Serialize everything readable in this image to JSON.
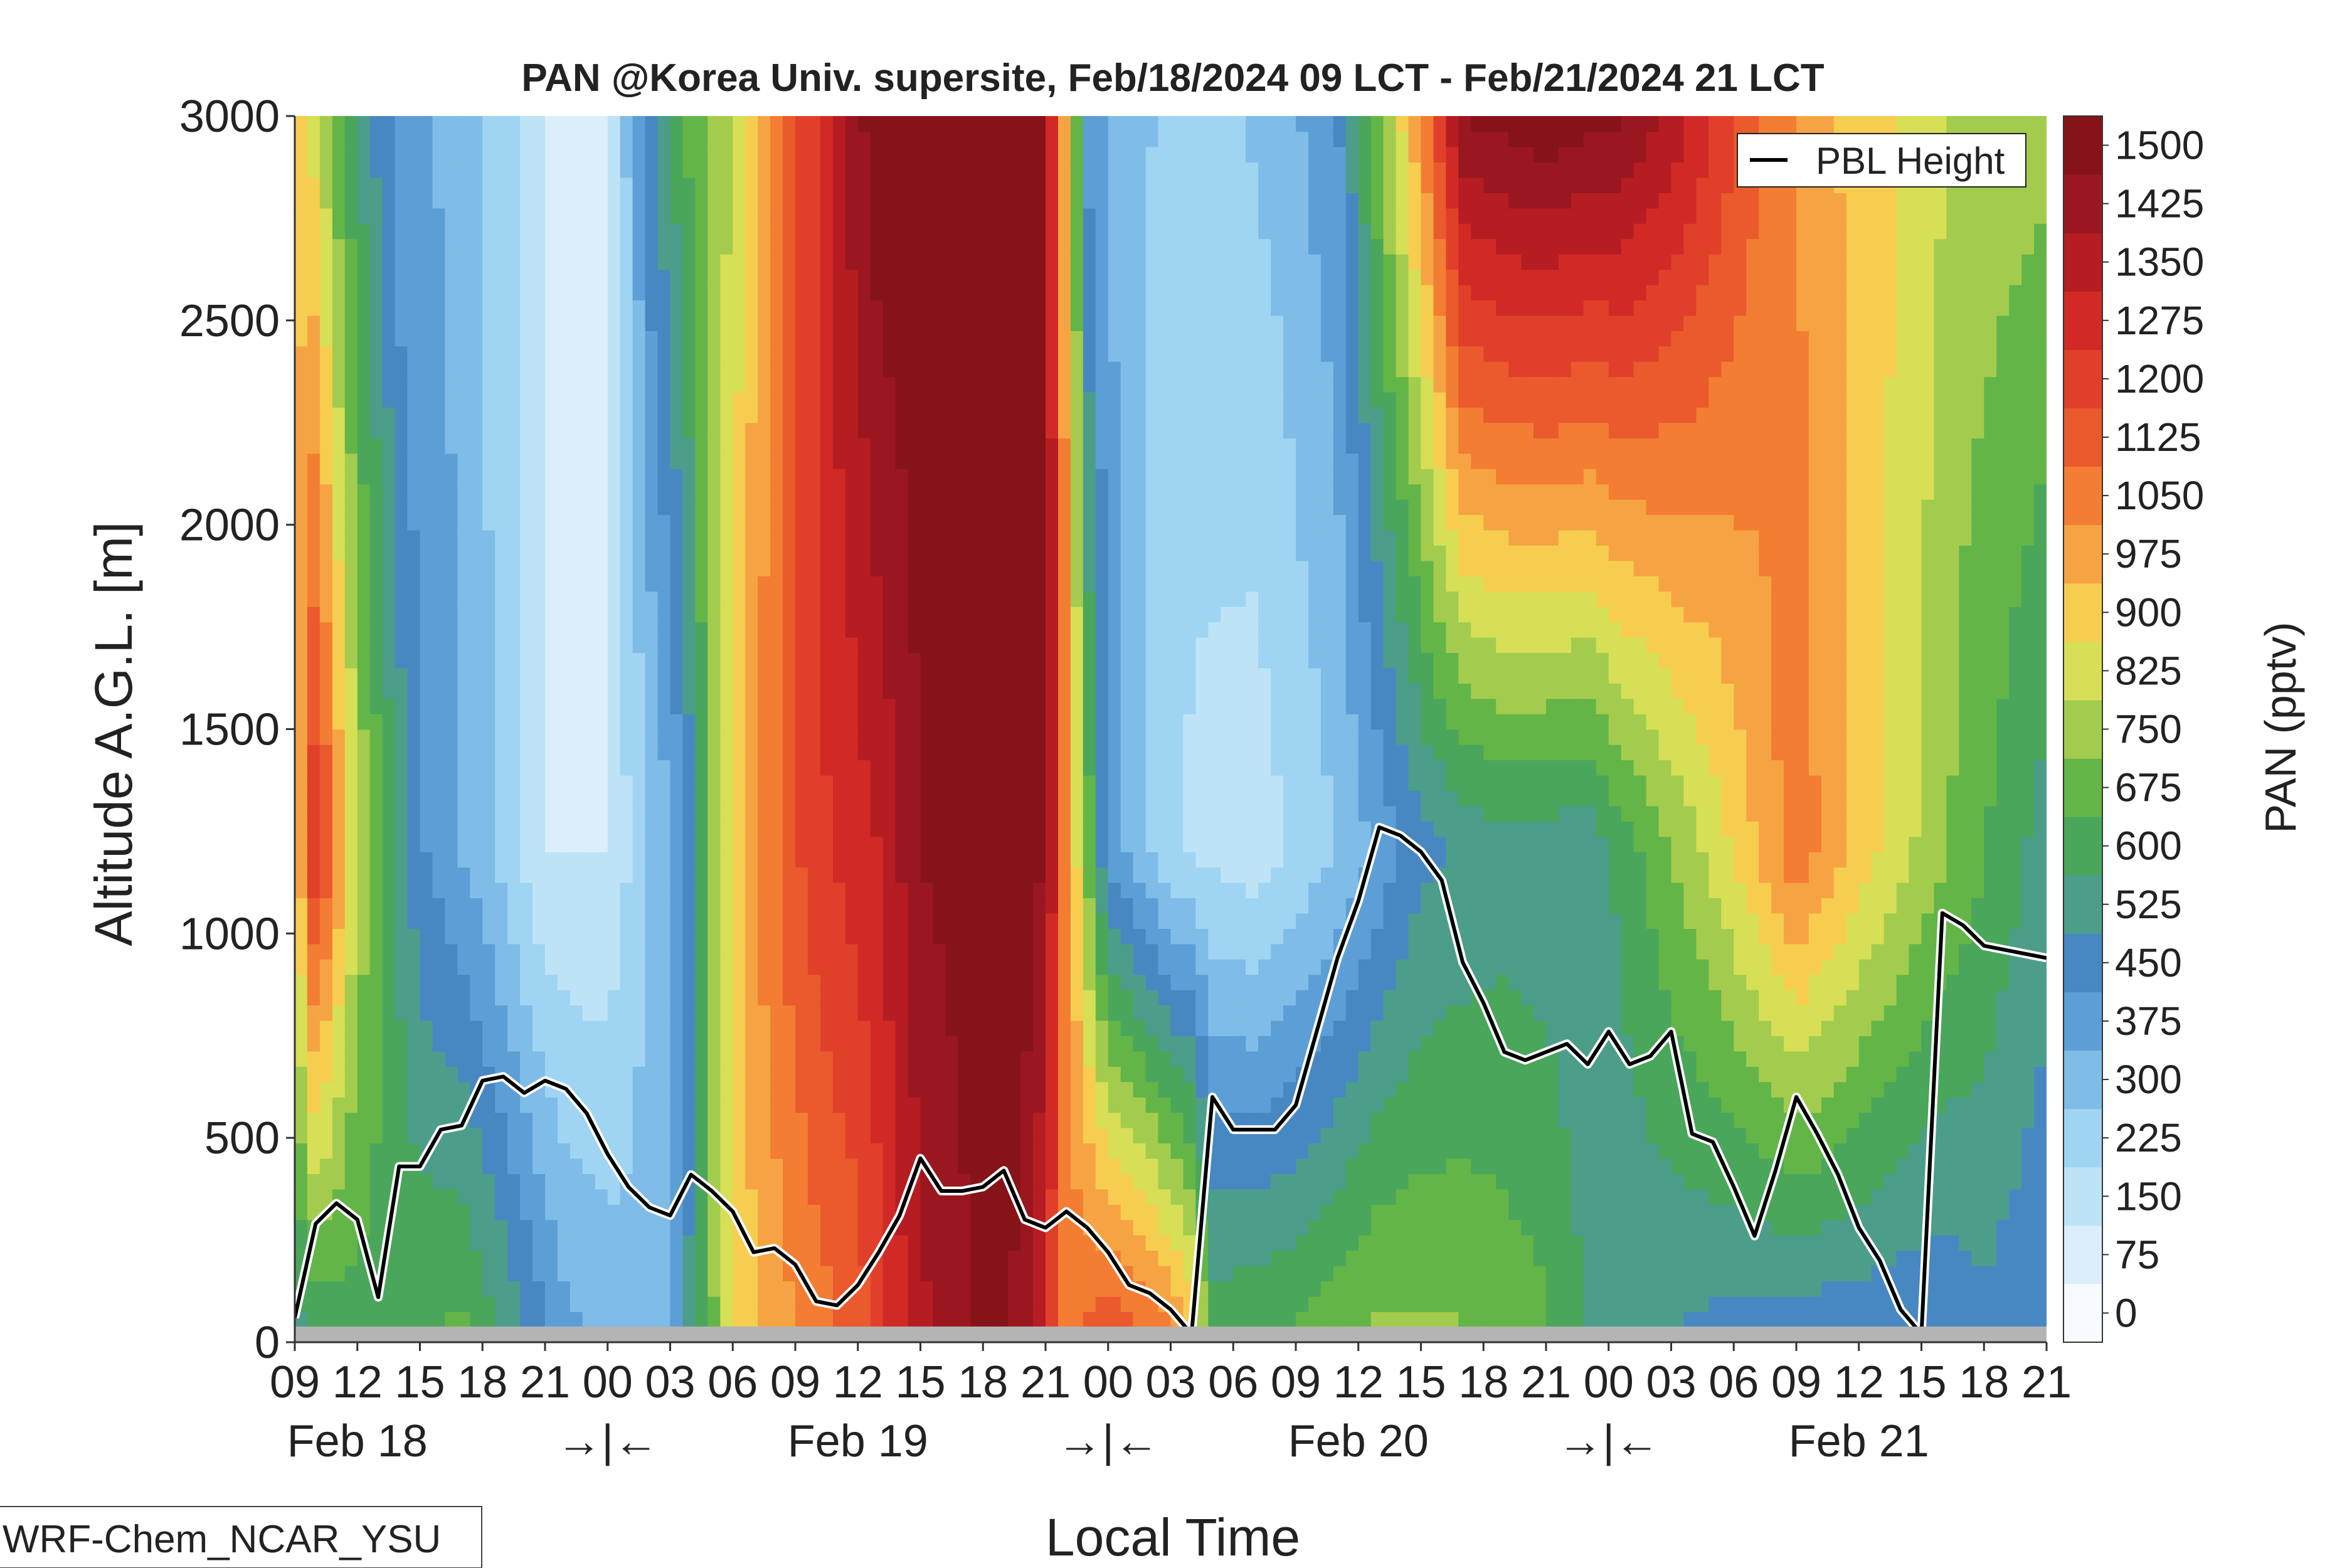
{
  "chart_data": {
    "type": "heatmap",
    "title": "PAN @Korea Univ. supersite, Feb/18/2024 09 LCT - Feb/21/2024 21 LCT",
    "xlabel": "Local Time",
    "ylabel": "Altitude A.G.L. [m]",
    "colorbar_label": "PAN (pptv)",
    "ylim": [
      0,
      3000
    ],
    "y_ticks": [
      "0",
      "500",
      "1000",
      "1500",
      "2000",
      "2500",
      "3000"
    ],
    "x_hour_ticks": [
      "09",
      "12",
      "15",
      "18",
      "21",
      "00",
      "03",
      "06",
      "09",
      "12",
      "15",
      "18",
      "21",
      "00",
      "03",
      "06",
      "09",
      "12",
      "15",
      "18",
      "21",
      "00",
      "03",
      "06",
      "09",
      "12",
      "15",
      "18",
      "21"
    ],
    "x_day_labels": [
      {
        "label": "Feb 18",
        "hour_index": 1
      },
      {
        "label": "→|←",
        "hour_index": 5
      },
      {
        "label": "Feb 19",
        "hour_index": 9
      },
      {
        "label": "→|←",
        "hour_index": 13
      },
      {
        "label": "Feb 20",
        "hour_index": 17
      },
      {
        "label": "→|←",
        "hour_index": 21
      },
      {
        "label": "Feb 21",
        "hour_index": 25
      }
    ],
    "colorbar_levels": [
      0,
      75,
      150,
      225,
      300,
      375,
      450,
      525,
      600,
      675,
      750,
      825,
      900,
      975,
      1050,
      1125,
      1200,
      1275,
      1350,
      1425,
      1500
    ],
    "colorbar_tick_labels": [
      "0",
      "75",
      "150",
      "225",
      "300",
      "375",
      "450",
      "525",
      "600",
      "675",
      "750",
      "825",
      "900",
      "975",
      "1050",
      "1125",
      "1200",
      "1275",
      "1350",
      "1425",
      "1500"
    ],
    "colorbar_colors": [
      "#f7fbff",
      "#dceefb",
      "#bfe3f6",
      "#9fd5f2",
      "#7fbce7",
      "#5c9fd6",
      "#4888c2",
      "#4c9e8a",
      "#4aa65a",
      "#63b548",
      "#a3cc4e",
      "#d6df55",
      "#f7cd50",
      "#f6a443",
      "#f27d33",
      "#ea5a2c",
      "#e0402a",
      "#d12a26",
      "#b51d22",
      "#9a171f",
      "#861318"
    ],
    "legend": {
      "entries": [
        "PBL Height"
      ],
      "position": "top-right"
    },
    "pbl_height": {
      "name": "PBL Height",
      "hours": [
        0,
        1,
        2,
        3,
        4,
        5,
        6,
        7,
        8,
        9,
        10,
        11,
        12,
        13,
        14,
        15,
        16,
        17,
        18,
        19,
        20,
        21,
        22,
        23,
        24,
        25,
        26,
        27,
        28,
        29,
        30,
        31,
        32,
        33,
        34,
        35,
        36,
        37,
        38,
        39,
        40,
        41,
        42,
        43,
        44,
        45,
        46,
        47,
        48,
        49,
        50,
        51,
        52,
        53,
        54,
        55,
        56,
        57,
        58,
        59,
        60,
        61,
        62,
        63,
        64,
        65,
        66,
        67,
        68,
        69,
        70,
        71,
        72,
        73,
        74,
        75,
        76,
        77,
        78,
        79,
        80,
        81,
        82,
        83,
        84
      ],
      "values": [
        60,
        290,
        340,
        300,
        110,
        430,
        430,
        520,
        530,
        640,
        650,
        610,
        640,
        620,
        560,
        460,
        380,
        330,
        310,
        410,
        370,
        320,
        220,
        230,
        190,
        100,
        90,
        140,
        220,
        310,
        450,
        370,
        370,
        380,
        420,
        300,
        280,
        320,
        280,
        220,
        140,
        120,
        80,
        20,
        600,
        520,
        520,
        520,
        580,
        760,
        940,
        1080,
        1260,
        1240,
        1200,
        1130,
        930,
        830,
        710,
        690,
        710,
        730,
        680,
        760,
        680,
        700,
        760,
        510,
        490,
        380,
        260,
        420,
        600,
        510,
        410,
        280,
        200,
        80,
        20,
        1050,
        1020,
        970,
        960,
        950,
        940
      ]
    },
    "bottom_band": "terrain (gray)",
    "annotation": "WRF-Chem_NCAR_YSU"
  }
}
